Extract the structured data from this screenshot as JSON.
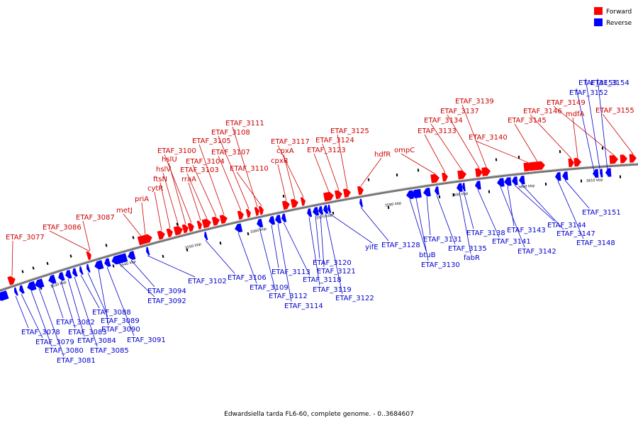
{
  "caption": "Edwardsiella tarda FL6-60, complete genome. - 0..3684607",
  "legend": {
    "forward": {
      "label": "Forward",
      "color": "#ff0000"
    },
    "reverse": {
      "label": "Reverse",
      "color": "#0000ff"
    }
  },
  "colors": {
    "forward_label": "#cc0000",
    "reverse_label": "#0000cc",
    "backbone": "#777777"
  },
  "ticks": [
    "3530 kbp",
    "3540 kbp",
    "3550 kbp",
    "3560 kbp",
    "3570 kbp",
    "3580 kbp",
    "3590 kbp",
    "3600 kbp",
    "3610 kbp"
  ],
  "forward_labels": [
    "ETAF_3077",
    "ETAF_3086",
    "ETAF_3087",
    "metJ",
    "priA",
    "cytR",
    "ftsN",
    "hslV",
    "hslU",
    "ETAF_3100",
    "rraA",
    "ETAF_3103",
    "ETAF_3104",
    "ETAF_3105",
    "ETAF_3107",
    "ETAF_3108",
    "ETAF_3111",
    "ETAF_3110",
    "cpxR",
    "cpxA",
    "ETAF_3117",
    "ETAF_3123",
    "ETAF_3124",
    "ETAF_3125",
    "hdfR",
    "ompC",
    "ETAF_3133",
    "ETAF_3134",
    "ETAF_3137",
    "ETAF_3139",
    "ETAF_3140",
    "ETAF_3145",
    "ETAF_3146",
    "mdfA",
    "ETAF_3149",
    "ETAF_3155"
  ],
  "reverse_labels": [
    "ETAF_3078",
    "ETAF_3079",
    "ETAF_3080",
    "ETAF_3081",
    "ETAF_3082",
    "ETAF_3083",
    "ETAF_3084",
    "ETAF_3085",
    "ETAF_3088",
    "ETAF_3089",
    "ETAF_3090",
    "ETAF_3091",
    "ETAF_3092",
    "ETAF_3094",
    "ETAF_3102",
    "ETAF_3106",
    "ETAF_3109",
    "ETAF_3112",
    "ETAF_3113",
    "ETAF_3114",
    "ETAF_3118",
    "ETAF_3119",
    "ETAF_3120",
    "ETAF_3121",
    "ETAF_3122",
    "yifE",
    "ETAF_3128",
    "btuB",
    "ETAF_3130",
    "ETAF_3131",
    "ETAF_3135",
    "fabR",
    "ETAF_3138",
    "ETAF_3141",
    "ETAF_3142",
    "ETAF_3143",
    "ETAF_3144",
    "ETAF_3147",
    "ETAF_3148",
    "ETAF_3151",
    "ETAF_3152",
    "ETAF_3153",
    "ETAF_3154"
  ]
}
